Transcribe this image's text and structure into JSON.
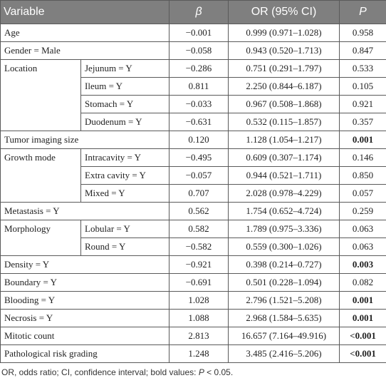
{
  "header": {
    "variable": "Variable",
    "beta": "β",
    "or": "OR (95% CI)",
    "p": "P"
  },
  "table": {
    "rows": [
      {
        "label": "Age",
        "beta": "−0.001",
        "or": "0.999 (0.971–1.028)",
        "p": "0.958"
      },
      {
        "label": "Gender = Male",
        "beta": "−0.058",
        "or": "0.943 (0.520–1.713)",
        "p": "0.847"
      },
      {
        "label": "Location",
        "levels": [
          {
            "label": "Jejunum = Y",
            "beta": "−0.286",
            "or": "0.751 (0.291–1.797)",
            "p": "0.533"
          },
          {
            "label": "Ileum = Y",
            "beta": "0.811",
            "or": "2.250 (0.844–6.187)",
            "p": "0.105"
          },
          {
            "label": "Stomach = Y",
            "beta": "−0.033",
            "or": "0.967 (0.508–1.868)",
            "p": "0.921"
          },
          {
            "label": "Duodenum = Y",
            "beta": "−0.631",
            "or": "0.532 (0.115–1.857)",
            "p": "0.357"
          }
        ]
      },
      {
        "label": "Tumor imaging size",
        "beta": "0.120",
        "or": "1.128 (1.054–1.217)",
        "p": "0.001",
        "bold": true
      },
      {
        "label": "Growth mode",
        "levels": [
          {
            "label": "Intracavity = Y",
            "beta": "−0.495",
            "or": "0.609 (0.307–1.174)",
            "p": "0.146"
          },
          {
            "label": "Extra cavity = Y",
            "beta": "−0.057",
            "or": "0.944 (0.521–1.711)",
            "p": "0.850"
          },
          {
            "label": "Mixed = Y",
            "beta": "0.707",
            "or": "2.028 (0.978–4.229)",
            "p": "0.057"
          }
        ]
      },
      {
        "label": "Metastasis = Y",
        "beta": "0.562",
        "or": "1.754 (0.652–4.724)",
        "p": "0.259"
      },
      {
        "label": "Morphology",
        "levels": [
          {
            "label": "Lobular = Y",
            "beta": "0.582",
            "or": "1.789 (0.975–3.336)",
            "p": "0.063"
          },
          {
            "label": "Round = Y",
            "beta": "−0.582",
            "or": "0.559 (0.300–1.026)",
            "p": "0.063"
          }
        ]
      },
      {
        "label": "Density = Y",
        "beta": "−0.921",
        "or": "0.398 (0.214–0.727)",
        "p": "0.003",
        "bold": true
      },
      {
        "label": "Boundary = Y",
        "beta": "−0.691",
        "or": "0.501 (0.228–1.094)",
        "p": "0.082"
      },
      {
        "label": "Blooding = Y",
        "beta": "1.028",
        "or": "2.796 (1.521–5.208)",
        "p": "0.001",
        "bold": true
      },
      {
        "label": "Necrosis = Y",
        "beta": "1.088",
        "or": "2.968 (1.584–5.635)",
        "p": "0.001",
        "bold": true
      },
      {
        "label": "Mitotic count",
        "beta": "2.813",
        "or": "16.657 (7.164–49.916)",
        "p": "<0.001",
        "bold": true
      },
      {
        "label": "Pathological risk grading",
        "beta": "1.248",
        "or": "3.485 (2.416–5.206)",
        "p": "<0.001",
        "bold": true
      }
    ]
  },
  "footer": [
    "OR, odds ratio; CI, confidence interval; bold values: ",
    "P",
    " < 0.05."
  ]
}
